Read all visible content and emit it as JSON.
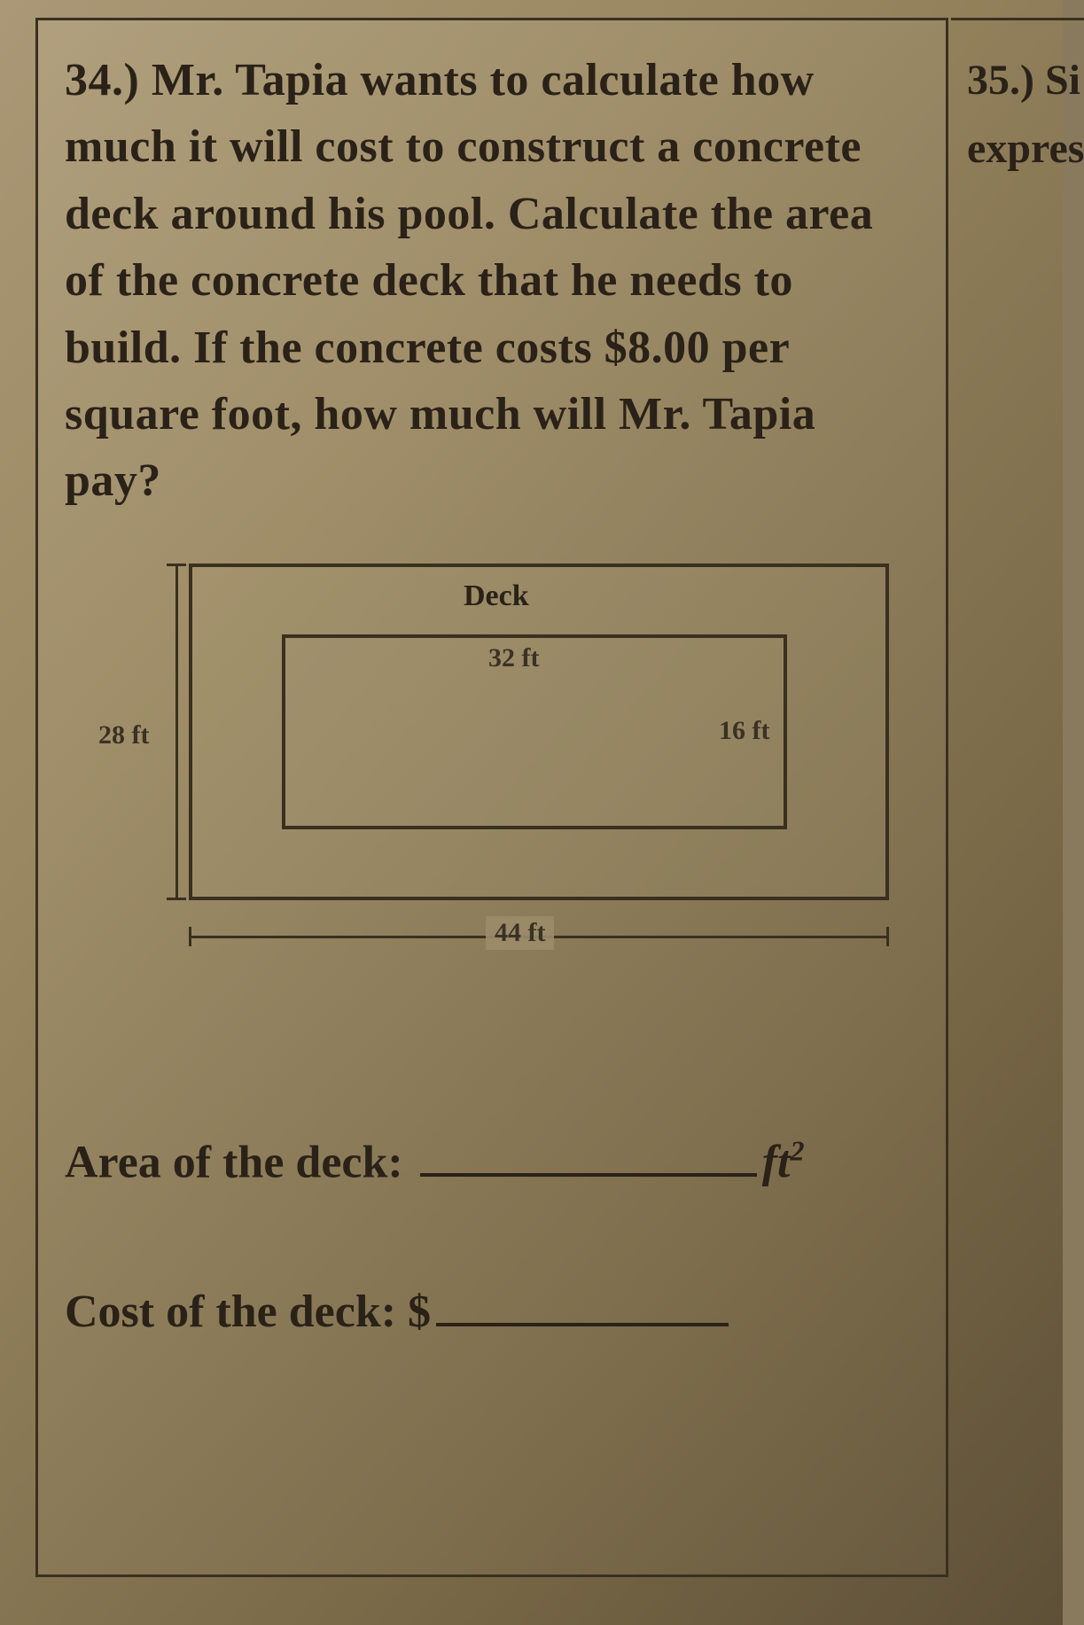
{
  "problem": {
    "number_label": "34.)",
    "text": "Mr. Tapia wants to calculate how much it will cost to construct a concrete deck around his pool. Calculate the area of the concrete deck that he needs to build. If the concrete costs $8.00 per square foot, how much will Mr. Tapia pay?"
  },
  "diagram": {
    "outer": {
      "width_ft": 44,
      "height_ft": 28
    },
    "inner": {
      "width_ft": 32,
      "height_ft": 16
    },
    "labels": {
      "deck": "Deck",
      "outer_height": "28 ft",
      "outer_width": "44 ft",
      "inner_width": "32 ft",
      "inner_height": "16 ft"
    },
    "colors": {
      "line": "#3a3020",
      "bg": "#8a7a5d"
    }
  },
  "answers": {
    "area_label": "Area of the deck:",
    "area_unit": "ft",
    "area_exp": "2",
    "cost_label": "Cost of the deck: $"
  },
  "side_cell": {
    "line1": "35.) Si",
    "line2": "expres"
  }
}
